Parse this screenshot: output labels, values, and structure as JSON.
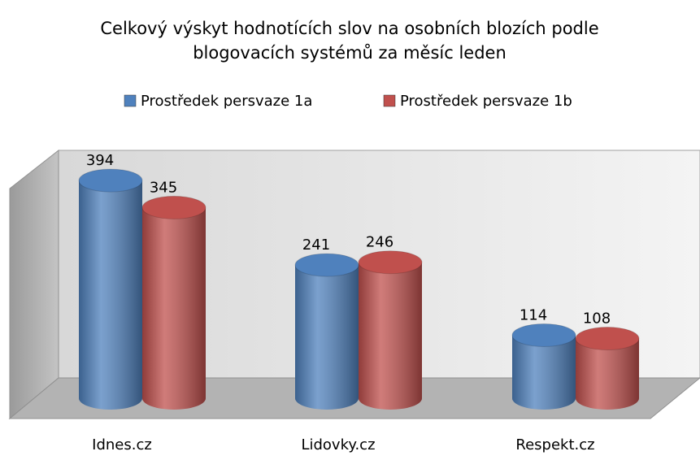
{
  "chart_data": {
    "type": "bar3d",
    "title": "Celkový výskyt hodnotících slov na osobních blozích podle blogovacích systémů za měsíc leden",
    "categories": [
      "Idnes.cz",
      "Lidovky.cz",
      "Respekt.cz"
    ],
    "series": [
      {
        "name": "Prostředek persvaze 1a",
        "color": "#4f81bd",
        "values": [
          394,
          241,
          114
        ]
      },
      {
        "name": "Prostředek persvaze 1b",
        "color": "#c0504d",
        "values": [
          345,
          246,
          108
        ]
      }
    ],
    "legend": "top"
  }
}
